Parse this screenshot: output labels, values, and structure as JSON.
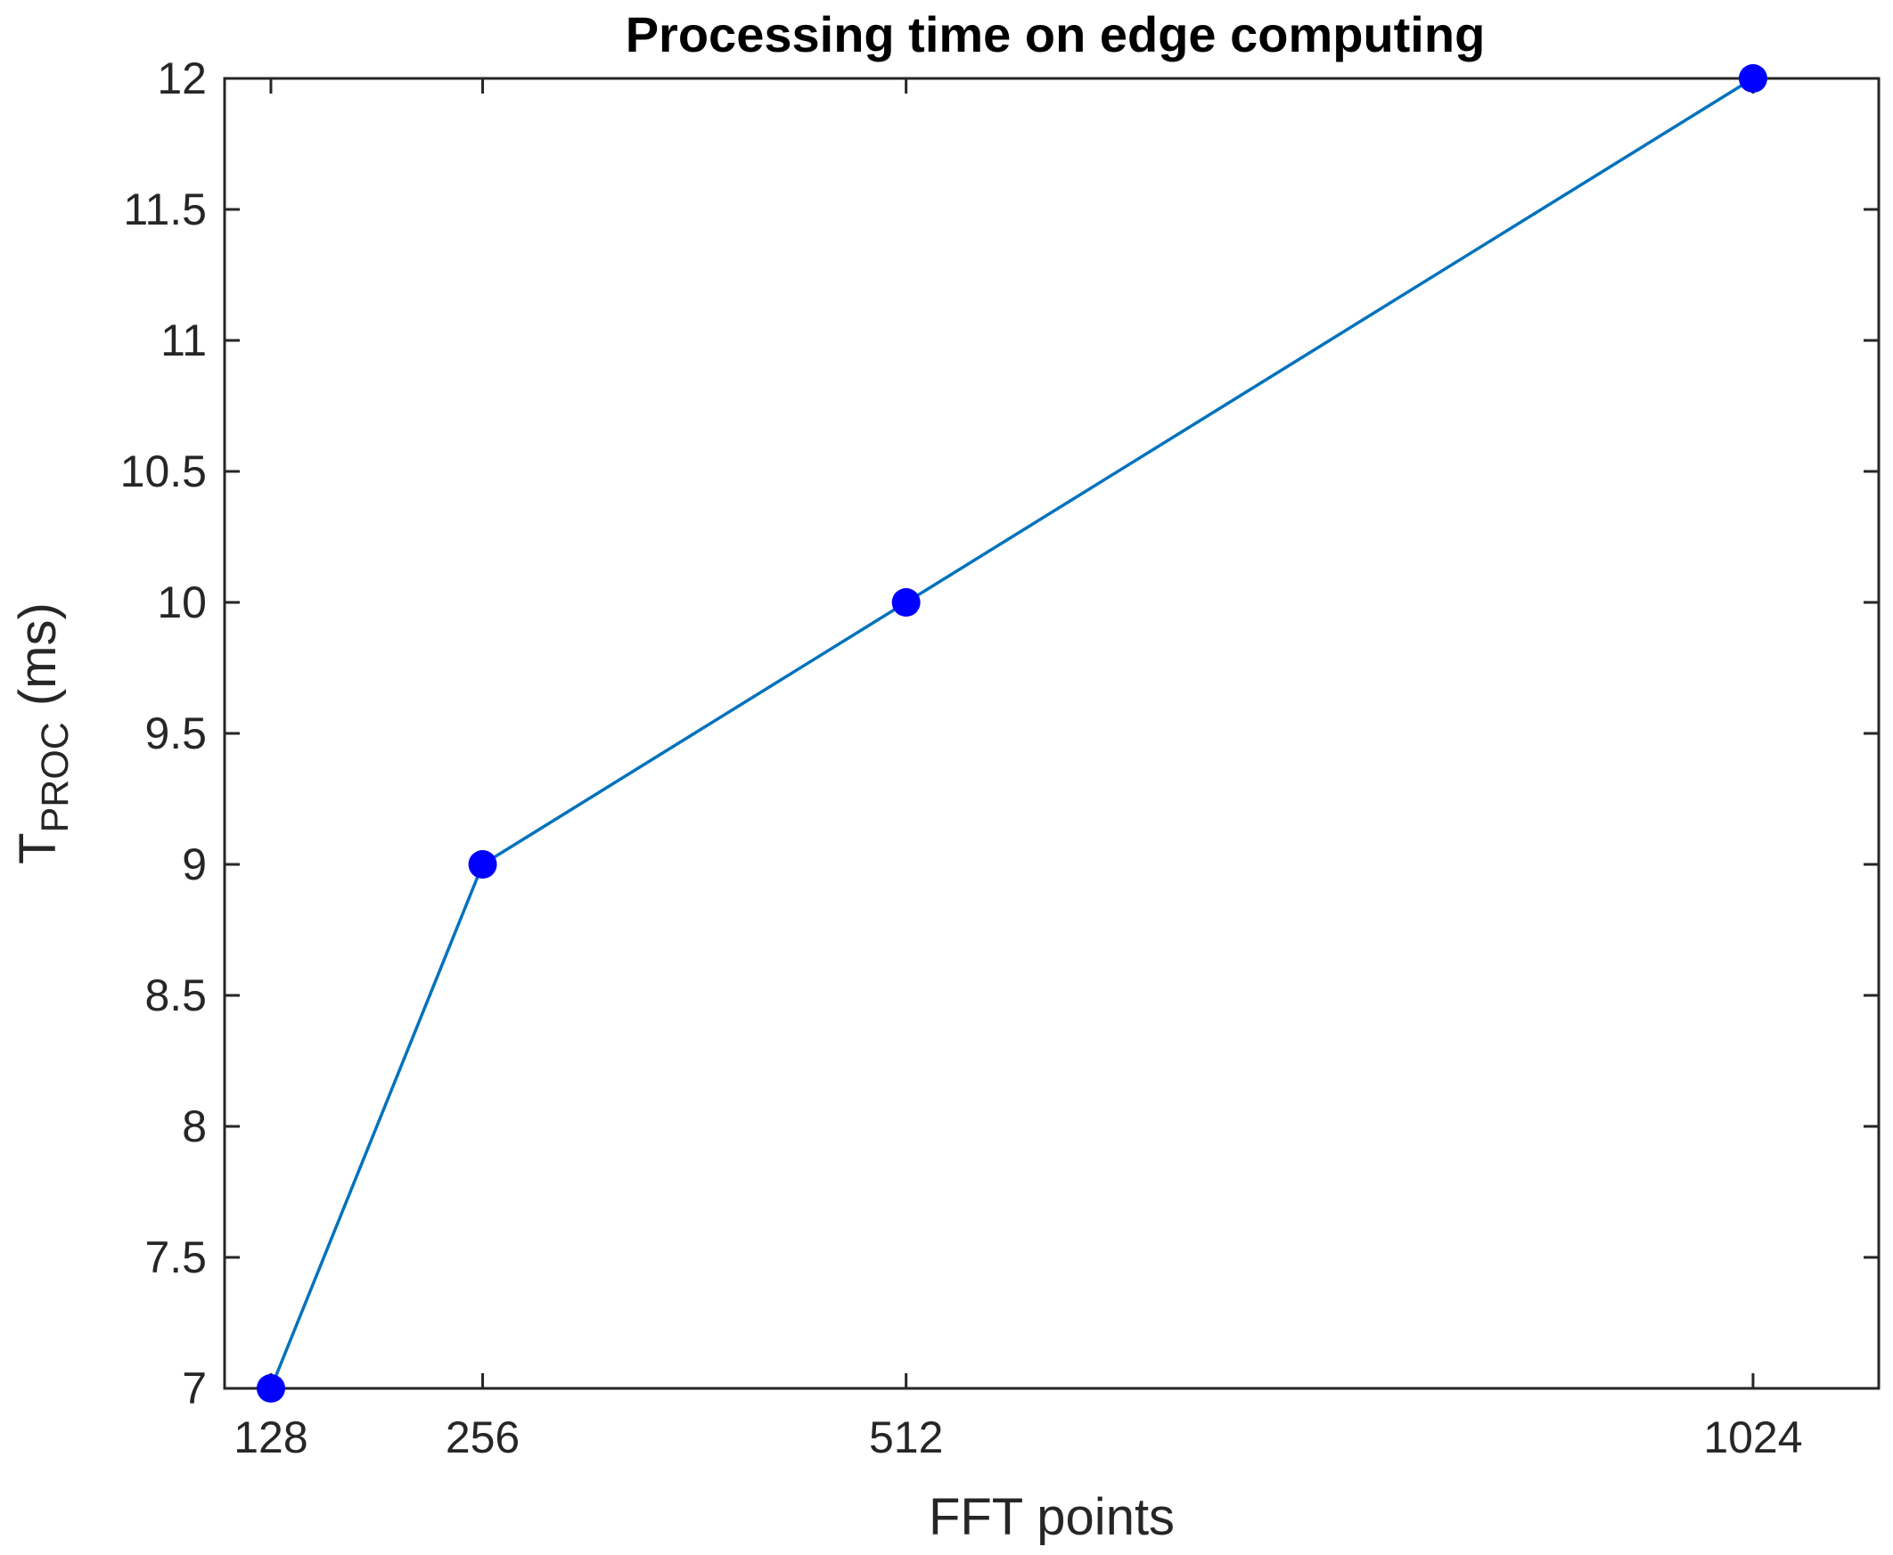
{
  "chart_data": {
    "type": "line",
    "title": "Processing time on edge computing",
    "xlabel": "FFT points",
    "ylabel": {
      "main": "T",
      "subscript": "PROC",
      "unit": "(ms)"
    },
    "x": [
      128,
      256,
      512,
      1024
    ],
    "series": [
      {
        "values": [
          7,
          9,
          10,
          12
        ],
        "line_color": "#0072BD",
        "marker_color": "#0000FF",
        "marker": "circle"
      }
    ],
    "xlim": [
      100,
      1100
    ],
    "ylim": [
      7,
      12
    ],
    "xticks": [
      128,
      256,
      512,
      1024
    ],
    "xtick_labels": [
      "128",
      "256",
      "512",
      "1024"
    ],
    "yticks": [
      7,
      7.5,
      8,
      8.5,
      9,
      9.5,
      10,
      10.5,
      11,
      11.5,
      12
    ],
    "ytick_labels": [
      "7",
      "7.5",
      "8",
      "8.5",
      "9",
      "9.5",
      "10",
      "10.5",
      "11",
      "11.5",
      "12"
    ],
    "grid": false,
    "box": true,
    "axis_color": "#262626"
  }
}
